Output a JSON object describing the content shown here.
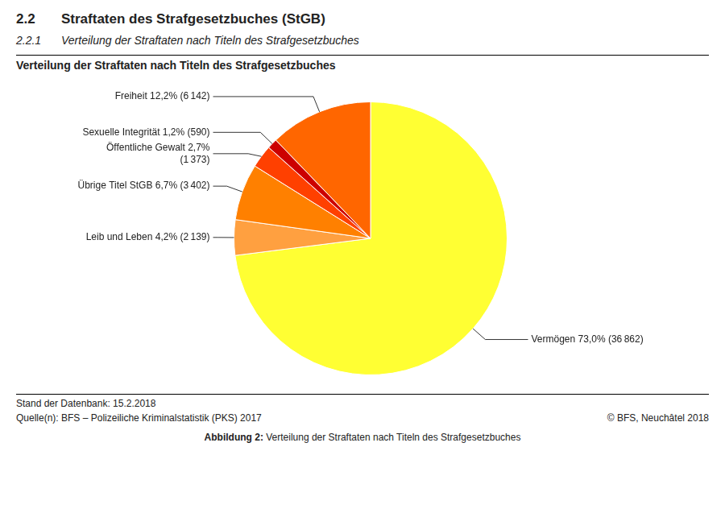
{
  "chart_data": {
    "type": "pie",
    "heading_number": "2.2",
    "heading": "Straftaten des Strafgesetzbuches (StGB)",
    "subheading_number": "2.2.1",
    "subheading": "Verteilung der Straftaten nach Titeln des Strafgesetzbuches",
    "title": "Verteilung der Straftaten nach Titeln des Strafgesetzbuches",
    "categories": [
      "Vermögen 73,0% (36 862)",
      "Leib und Leben 4,2% (2 139)",
      "Übrige Titel StGB 6,7% (3 402)",
      "Öffentliche Gewalt 2,7%\n(1 373)",
      "Sexuelle Integrität 1,2% (590)",
      "Freiheit 12,2% (6 142)"
    ],
    "values": [
      73.0,
      4.2,
      6.7,
      2.7,
      1.2,
      12.2
    ],
    "colors": [
      "#FFFF33",
      "#FFA040",
      "#FF8000",
      "#FF4000",
      "#CC0000",
      "#FF6600"
    ],
    "footer_left": "Stand der Datenbank: 15.2.2018",
    "footer_source": "Quelle(n): BFS – Polizeiliche Kriminalstatistik (PKS) 2017",
    "footer_right": "© BFS, Neuchâtel 2018",
    "caption_bold": "Abbildung 2:",
    "caption_normal": " Verteilung der Straftaten nach Titeln des Strafgesetzbuches"
  }
}
